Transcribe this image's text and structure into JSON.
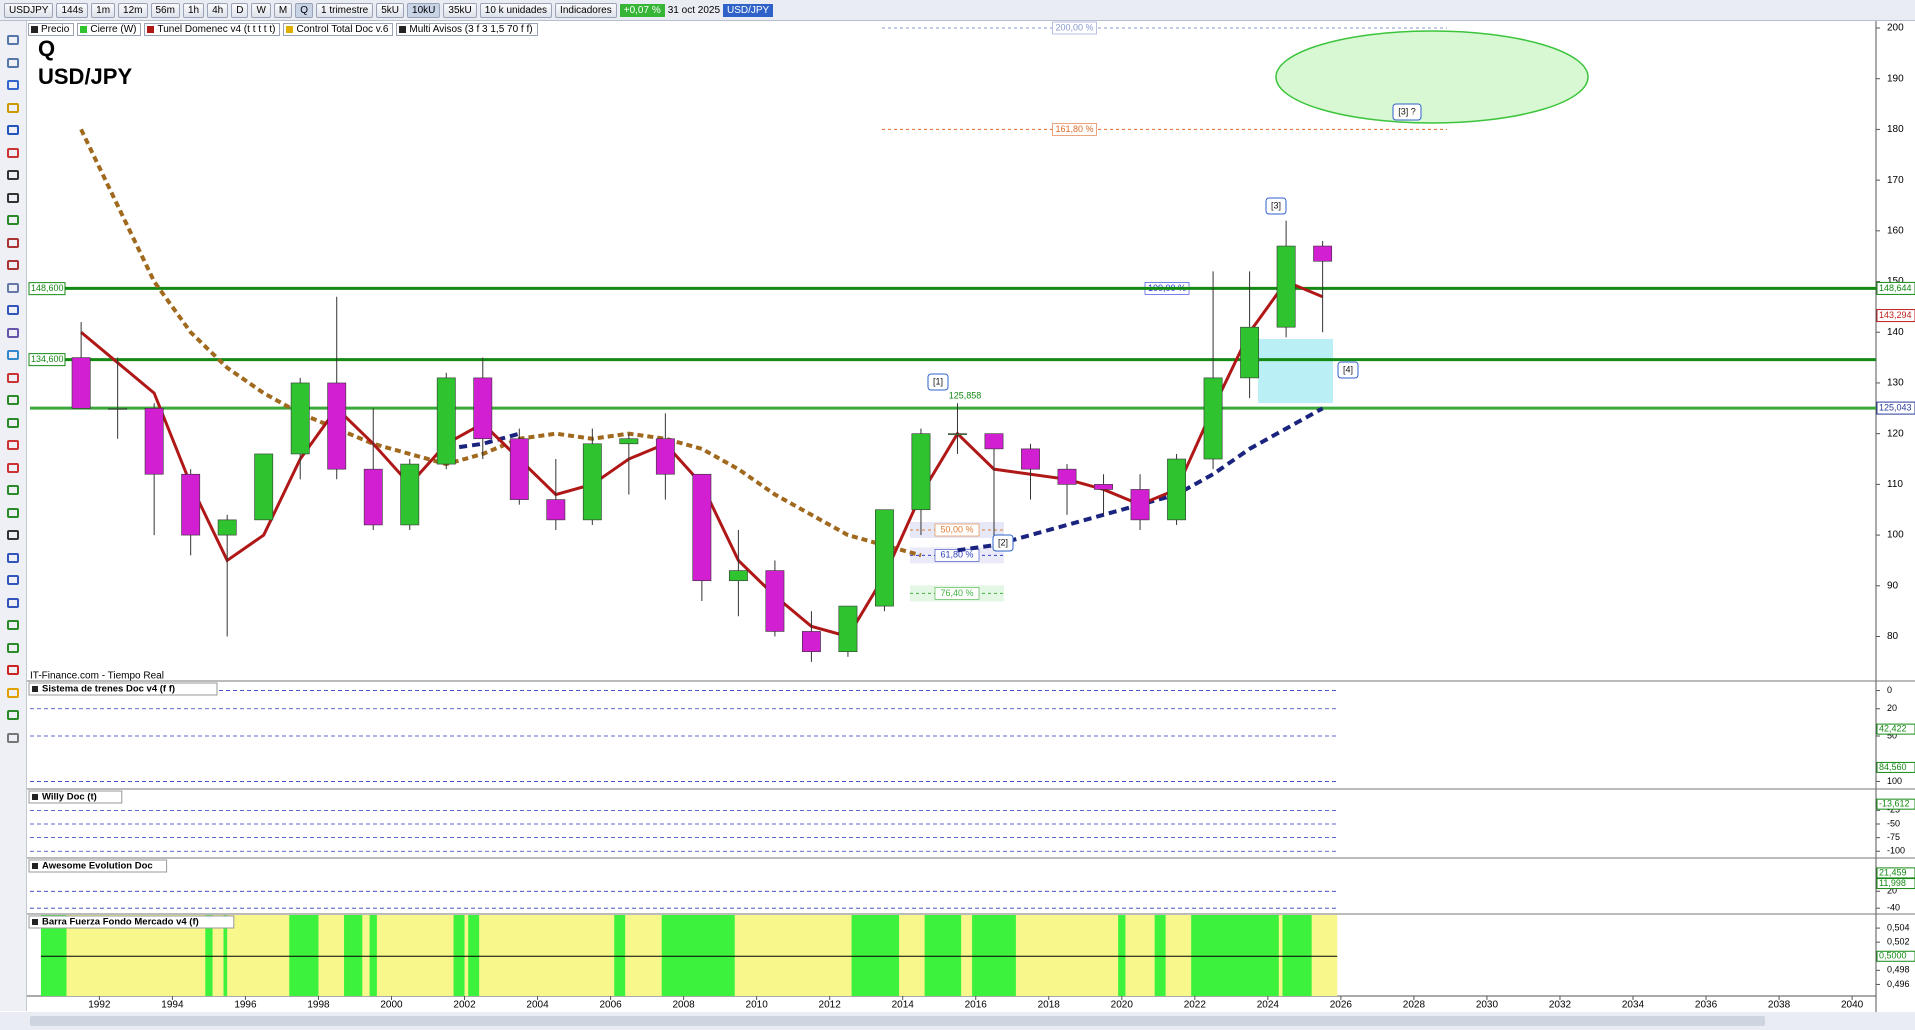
{
  "toolbar": {
    "symbol": "USDJPY",
    "intervals": [
      "144s",
      "1m",
      "12m",
      "56m",
      "1h",
      "4h",
      "D",
      "W",
      "M",
      "Q"
    ],
    "period": "1 trimestre",
    "units": [
      "5kU",
      "10kU",
      "35kU"
    ],
    "unit_select": "10 k unidades",
    "indicators": "Indicadores",
    "change": "+0,07 %",
    "date": "31 oct 2025",
    "instrument": "USD/JPY"
  },
  "legend_bar": [
    "Precio",
    "Cierre (W)",
    "Tunel Domenec v4 (t t t t t)",
    "Control Total Doc v.6",
    "Multi Avisos (3 f 3 1,5 70 f f)"
  ],
  "source": "IT-Finance.com - Tiempo Real",
  "chart_data": [
    {
      "type": "candlestick",
      "title": "Q",
      "subtitle": "USD/JPY",
      "x": [
        1991,
        1992,
        1993,
        1994,
        1995,
        1996,
        1997,
        1998,
        1999,
        2000,
        2001,
        2002,
        2003,
        2004,
        2005,
        2006,
        2007,
        2008,
        2009,
        2010,
        2011,
        2012,
        2013,
        2014,
        2015,
        2016,
        2017,
        2018,
        2019,
        2020,
        2021,
        2022,
        2023,
        2024,
        2025
      ],
      "open": [
        135,
        125,
        125,
        112,
        100,
        103,
        116,
        130,
        113,
        102,
        114,
        131,
        119,
        107,
        103,
        118,
        119,
        112,
        91,
        93,
        81,
        77,
        86,
        105,
        120,
        120,
        117,
        113,
        110,
        109,
        103,
        115,
        131,
        141,
        157
      ],
      "high": [
        142,
        135,
        126,
        113,
        104,
        116,
        131,
        147,
        125,
        115,
        132,
        135,
        121,
        115,
        121,
        120,
        124,
        112,
        101,
        95,
        85,
        86,
        105,
        121,
        126,
        119,
        118,
        114,
        112,
        112,
        116,
        152,
        152,
        162,
        158
      ],
      "low": [
        125,
        119,
        100,
        96,
        80,
        103,
        111,
        111,
        101,
        101,
        113,
        115,
        106,
        101,
        102,
        108,
        107,
        87,
        84,
        80,
        75,
        76,
        85,
        100,
        116,
        99,
        107,
        104,
        104,
        101,
        102,
        113,
        127,
        139,
        140
      ],
      "close": [
        125,
        125,
        112,
        100,
        103,
        116,
        130,
        113,
        102,
        114,
        131,
        119,
        107,
        103,
        118,
        119,
        112,
        91,
        93,
        81,
        77,
        86,
        105,
        120,
        120,
        117,
        113,
        110,
        109,
        103,
        115,
        131,
        141,
        157,
        154
      ],
      "up_color": "#2fc42f",
      "down_color": "#d21fd2",
      "lines": [
        {
          "color": "#a0691e",
          "dash": "6 4",
          "width": 4,
          "values": [
            180,
            165,
            150,
            140,
            133,
            128,
            124,
            121,
            118,
            116,
            114,
            116,
            119,
            120,
            119,
            120,
            119,
            117,
            113,
            108,
            104,
            100,
            98,
            96,
            null,
            null,
            null,
            null,
            null,
            null,
            null,
            null,
            null,
            null,
            null
          ]
        },
        {
          "color": "#1a237e",
          "dash": "8 5",
          "width": 4,
          "values": [
            null,
            null,
            null,
            null,
            null,
            null,
            null,
            null,
            null,
            null,
            117,
            118,
            120,
            null,
            null,
            null,
            null,
            null,
            null,
            null,
            null,
            null,
            null,
            null,
            97,
            98,
            100,
            102,
            104,
            106,
            108,
            112,
            117,
            121,
            125
          ]
        },
        {
          "color": "#b01818",
          "dash": "",
          "width": 3,
          "values": [
            140,
            134,
            128,
            110,
            95,
            100,
            115,
            125,
            118,
            110,
            118,
            122,
            115,
            108,
            110,
            115,
            118,
            110,
            95,
            88,
            82,
            80,
            92,
            108,
            120,
            113,
            112,
            111,
            109,
            106,
            109,
            125,
            140,
            150,
            147
          ]
        }
      ],
      "levels": [
        {
          "value": 148.644,
          "color": "#138a13"
        },
        {
          "value": 134.6,
          "color": "#138a13"
        },
        {
          "value": 125.043,
          "color": "#3aa83a"
        }
      ],
      "xlim": [
        1990.1,
        2040.6
      ],
      "xticks": [
        1992,
        1994,
        1996,
        1998,
        2000,
        2002,
        2004,
        2006,
        2008,
        2010,
        2012,
        2014,
        2016,
        2018,
        2020,
        2022,
        2024,
        2026,
        2028,
        2030,
        2032,
        2034,
        2036,
        2038,
        2040
      ],
      "ylim": [
        73,
        200
      ],
      "yticks": [
        80,
        90,
        100,
        110,
        120,
        130,
        140,
        150,
        160,
        170,
        180,
        190,
        200
      ],
      "grid": false,
      "price_labels": [
        {
          "value": 148.644,
          "label": "148,644",
          "color": "#138a13"
        },
        {
          "value": 143.294,
          "label": "143,294",
          "color": "#c02020"
        },
        {
          "value": 125.043,
          "label": "125,043",
          "color": "#2a3a9a"
        }
      ],
      "left_labels": [
        {
          "value": 148.6,
          "label": "148,600"
        },
        {
          "value": 134.6,
          "label": "134,600"
        }
      ],
      "fib_labels": [
        {
          "value": 200,
          "label": "200,00 %",
          "color": "#8898d0"
        },
        {
          "value": 180,
          "label": "161,80 %",
          "color": "#e06a2a"
        },
        {
          "value": 148.644,
          "label": "100,00 %",
          "color": "#2030e0"
        },
        {
          "value": 101,
          "label": "50,00 %",
          "color": "#e07a30"
        },
        {
          "value": 96,
          "label": "61,80 %",
          "color": "#3040c0"
        },
        {
          "value": 88.5,
          "label": "76,40 %",
          "color": "#40b040"
        }
      ],
      "wave_labels": [
        "[1]",
        "125,858",
        "[2]",
        "[3]",
        "[3] ?",
        "[4]"
      ]
    },
    {
      "type": "indicator",
      "title": "Sistema de trenes Doc v4 (f f)",
      "ylim": [
        -5,
        105
      ],
      "yticks": [
        100,
        50,
        20,
        0
      ],
      "value_labels": [
        {
          "value": 84.56,
          "label": "84,560"
        },
        {
          "value": 42.422,
          "label": "42,422"
        }
      ],
      "bands": [
        {
          "from": 80,
          "to": 100,
          "color": "#d7efd0"
        },
        {
          "from": 0,
          "to": 20,
          "color": "#f7d3d3"
        }
      ]
    },
    {
      "type": "indicator",
      "title": "Willy Doc (t)",
      "ylim": [
        5,
        -105
      ],
      "yticks": [
        -25,
        -50,
        -75,
        -100
      ],
      "value_labels": [
        {
          "value": -13.612,
          "label": "-13,612"
        }
      ],
      "bands": []
    },
    {
      "type": "indicator",
      "title": "Awesome Evolution Doc",
      "ylim": [
        110,
        -50
      ],
      "yticks": [
        20,
        -40
      ],
      "value_labels": [
        {
          "value": 21.459,
          "label": "21,459"
        },
        {
          "value": 11.998,
          "label": "11,998"
        }
      ],
      "bands": []
    },
    {
      "type": "regime",
      "title": "Barra Fuerza Fondo Mercado v4 (f)",
      "ylim": [
        0.506,
        0.4945
      ],
      "yticks": [
        {
          "value": 0.504,
          "label": "0,504"
        },
        {
          "value": 0.502,
          "label": "0,502"
        },
        {
          "value": 0.5,
          "label": "0,500"
        },
        {
          "value": 0.498,
          "label": "0,498"
        },
        {
          "value": 0.496,
          "label": "0,496"
        }
      ],
      "value_labels": [
        {
          "value": 0.5,
          "label": "0,5000"
        }
      ],
      "background": {
        "color": "#f7f78c",
        "span": [
          1990.4,
          2025.9
        ]
      },
      "span_color": "#3df23d",
      "spans": [
        [
          1990.4,
          1991.1
        ],
        [
          1994.9,
          1995.1
        ],
        [
          1995.4,
          1995.5
        ],
        [
          1997.2,
          1998.0
        ],
        [
          1998.7,
          1999.2
        ],
        [
          1999.4,
          1999.6
        ],
        [
          2001.7,
          2002.0
        ],
        [
          2002.1,
          2002.4
        ],
        [
          2006.1,
          2006.4
        ],
        [
          2007.4,
          2009.4
        ],
        [
          2012.6,
          2013.9
        ],
        [
          2014.6,
          2015.6
        ],
        [
          2015.9,
          2017.1
        ],
        [
          2019.9,
          2020.1
        ],
        [
          2020.9,
          2021.2
        ],
        [
          2021.9,
          2024.3
        ],
        [
          2024.4,
          2025.2
        ]
      ]
    }
  ]
}
